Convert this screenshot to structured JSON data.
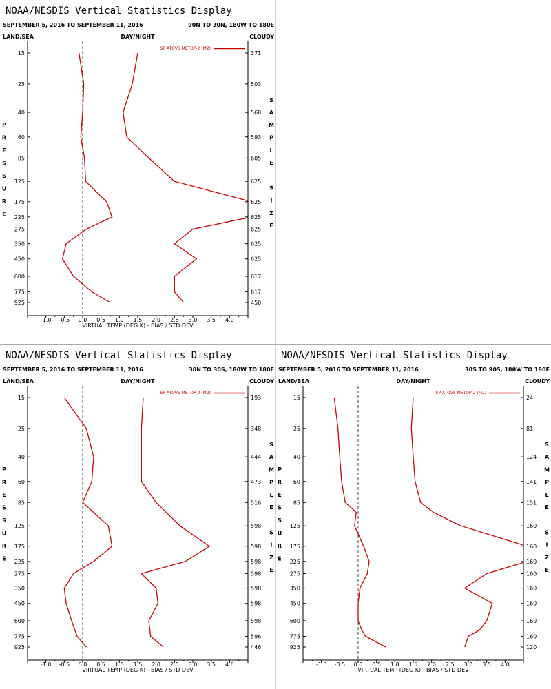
{
  "window_title": "NOAA/NESDIS Vertical Statistics Display",
  "colors": {
    "series": "#cc0000",
    "axis": "#000000",
    "divider": "#aaaaaa",
    "zero_line": "#444444"
  },
  "chart_data": [
    {
      "type": "line",
      "title": "NOAA/NESDIS Vertical Statistics Display",
      "date_range": "SEPTEMBER 5, 2016 TO SEPTEMBER 11, 2016",
      "region": "90N TO 30N, 180W TO 180E",
      "land_sea": "LAND/SEA",
      "day_night": "DAY/NIGHT",
      "cloudy": "CLOUDY",
      "xlabel": "VIRTUAL TEMP (DEG K) - BIAS / STD DEV",
      "ylabel": "PRESSURE",
      "right_label": "SAMPLE SIZE",
      "legend": "SP ATOVS METOP-2 (M2)",
      "xlim": [
        -1.5,
        4.5
      ],
      "x_ticks": [
        "-1.0",
        "-0.5",
        "0.0",
        "0.5",
        "1.0",
        "1.5",
        "2.0",
        "2.5",
        "3.0",
        "3.5",
        "4.0"
      ],
      "x_tick_values": [
        -1.0,
        -0.5,
        0.0,
        0.5,
        1.0,
        1.5,
        2.0,
        2.5,
        3.0,
        3.5,
        4.0
      ],
      "pressure_levels": [
        "15",
        "25",
        "40",
        "60",
        "85",
        "125",
        "175",
        "225",
        "275",
        "350",
        "450",
        "600",
        "775",
        "925"
      ],
      "sample_size": [
        "371",
        "503",
        "568",
        "593",
        "605",
        "625",
        "625",
        "625",
        "625",
        "625",
        "625",
        "617",
        "617",
        "450"
      ],
      "series": [
        {
          "name": "bias",
          "values": [
            -0.1,
            0.03,
            0.0,
            -0.05,
            0.05,
            0.08,
            0.65,
            0.8,
            0.1,
            -0.45,
            -0.55,
            -0.25,
            0.25,
            0.75
          ]
        },
        {
          "name": "std dev",
          "values": [
            1.5,
            1.35,
            1.1,
            1.2,
            1.8,
            2.5,
            4.6,
            4.6,
            3.0,
            2.5,
            3.1,
            2.5,
            2.5,
            2.75
          ]
        }
      ]
    },
    {
      "type": "line",
      "title": "NOAA/NESDIS Vertical Statistics Display",
      "date_range": "SEPTEMBER 5, 2016 TO SEPTEMBER 11, 2016",
      "region": "30N TO 30S, 180W TO 180E",
      "land_sea": "LAND/SEA",
      "day_night": "DAY/NIGHT",
      "cloudy": "CLOUDY",
      "xlabel": "VIRTUAL TEMP (DEG K) - BIAS / STD DEV",
      "ylabel": "PRESSURE",
      "right_label": "SAMPLE SIZE",
      "legend": "SP ATOVS METOP-2 (M2)",
      "xlim": [
        -1.5,
        4.5
      ],
      "x_ticks": [
        "-1.0",
        "-0.5",
        "0.0",
        "0.5",
        "1.0",
        "1.5",
        "2.0",
        "2.5",
        "3.0",
        "3.5",
        "4.0"
      ],
      "x_tick_values": [
        -1.0,
        -0.5,
        0.0,
        0.5,
        1.0,
        1.5,
        2.0,
        2.5,
        3.0,
        3.5,
        4.0
      ],
      "pressure_levels": [
        "15",
        "25",
        "40",
        "60",
        "85",
        "125",
        "175",
        "225",
        "275",
        "350",
        "450",
        "600",
        "775",
        "925"
      ],
      "sample_size": [
        "193",
        "348",
        "444",
        "473",
        "516",
        "598",
        "598",
        "598",
        "598",
        "598",
        "598",
        "598",
        "596",
        "446"
      ],
      "series": [
        {
          "name": "bias",
          "values": [
            -0.5,
            0.1,
            0.3,
            0.25,
            0.0,
            0.7,
            0.8,
            0.3,
            -0.25,
            -0.5,
            -0.45,
            -0.3,
            -0.15,
            0.1
          ]
        },
        {
          "name": "std dev",
          "values": [
            1.65,
            1.6,
            1.6,
            1.6,
            2.0,
            2.65,
            3.45,
            2.8,
            1.6,
            2.0,
            2.05,
            1.8,
            1.85,
            2.2
          ]
        }
      ]
    },
    {
      "type": "line",
      "title": "NOAA/NESDIS Vertical Statistics Display",
      "date_range": "SEPTEMBER 5, 2016 TO SEPTEMBER 11, 2016",
      "region": "30S TO 90S, 180W TO 180E",
      "land_sea": "LAND/SEA",
      "day_night": "DAY/NIGHT",
      "cloudy": "CLOUDY",
      "xlabel": "VIRTUAL TEMP (DEG K) - BIAS / STD DEV",
      "ylabel": "PRESSURE",
      "right_label": "SAMPLE SIZE",
      "legend": "SP ATOVS METOP-2 (M2)",
      "xlim": [
        -1.5,
        4.5
      ],
      "x_ticks": [
        "-1.0",
        "-0.5",
        "0.0",
        "0.5",
        "1.0",
        "1.5",
        "2.0",
        "2.5",
        "3.0",
        "3.5",
        "4.0"
      ],
      "x_tick_values": [
        -1.0,
        -0.5,
        0.0,
        0.5,
        1.0,
        1.5,
        2.0,
        2.5,
        3.0,
        3.5,
        4.0
      ],
      "pressure_levels": [
        "15",
        "25",
        "40",
        "60",
        "85",
        "125",
        "175",
        "225",
        "275",
        "350",
        "450",
        "600",
        "775",
        "925"
      ],
      "sample_size": [
        "24",
        "81",
        "124",
        "141",
        "151",
        "160",
        "160",
        "160",
        "160",
        "160",
        "160",
        "160",
        "160",
        "120"
      ],
      "series": [
        {
          "name": "bias",
          "values": [
            -0.65,
            -0.55,
            -0.5,
            -0.45,
            -0.35,
            -0.05,
            -0.1,
            0.15,
            0.3,
            0.25,
            0.05,
            0.0,
            0.0,
            0.1,
            0.2,
            0.75
          ]
        },
        {
          "name": "std dev",
          "values": [
            1.5,
            1.45,
            1.5,
            1.55,
            1.7,
            2.05,
            2.8,
            4.6,
            4.6,
            3.5,
            2.9,
            3.65,
            3.5,
            3.3,
            3.0,
            2.9
          ]
        }
      ],
      "series_y_levels": [
        15,
        25,
        40,
        60,
        85,
        100,
        125,
        175,
        225,
        275,
        350,
        450,
        600,
        700,
        775,
        925
      ]
    }
  ]
}
